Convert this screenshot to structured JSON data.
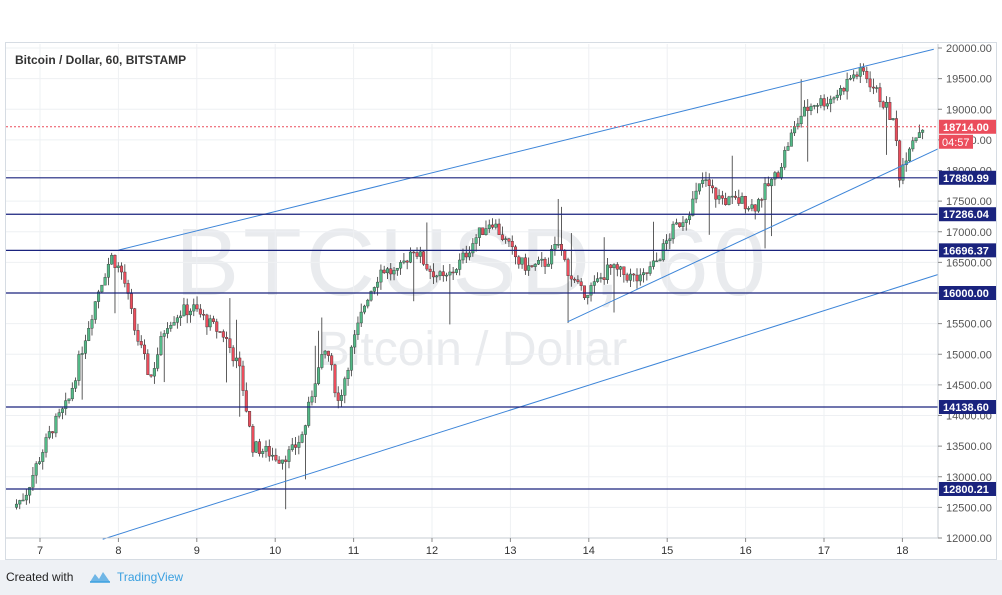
{
  "chart_title": "Bitcoin / Dollar, 60, BITSTAMP",
  "watermark": {
    "symbol": "BTCUSD, 60",
    "description": "Bitcoin / Dollar"
  },
  "footer": {
    "created_with": "Created with",
    "brand": "TradingView"
  },
  "colors": {
    "up": "#53b987",
    "down": "#eb4d5c",
    "level_line": "#1a237e",
    "trend_line": "#3d85d8",
    "last_price": "#eb4d5c",
    "background": "#ffffff"
  },
  "chart_data": {
    "type": "candlestick",
    "title": "Bitcoin / Dollar, 60, BITSTAMP",
    "x_tick_labels": [
      "7",
      "8",
      "9",
      "10",
      "11",
      "12",
      "13",
      "14",
      "15",
      "16",
      "17",
      "18"
    ],
    "y_tick_labels": [
      "12000.00",
      "12500.00",
      "13000.00",
      "13500.00",
      "14000.00",
      "14500.00",
      "15000.00",
      "15500.00",
      "16000.00",
      "16500.00",
      "17000.00",
      "17500.00",
      "18000.00",
      "18500.00",
      "19000.00",
      "19500.00",
      "20000.00"
    ],
    "ylim": [
      12000,
      20000
    ],
    "grid": true,
    "horizontal_levels": [
      {
        "price": 17880.99,
        "label": "17880.99"
      },
      {
        "price": 17286.04,
        "label": "17286.04"
      },
      {
        "price": 16696.37,
        "label": "16696.37"
      },
      {
        "price": 16000.0,
        "label": "16000.00"
      },
      {
        "price": 14138.6,
        "label": "14138.60"
      },
      {
        "price": 12800.21,
        "label": "12800.21"
      }
    ],
    "last_price": {
      "price": 18714.0,
      "label": "18714.00",
      "countdown": "04:57"
    },
    "trend_lines": [
      {
        "from": {
          "day": 8.0,
          "price": 16700
        },
        "to": {
          "day": 18.4,
          "price": 19980
        }
      },
      {
        "from": {
          "day": 7.8,
          "price": 11980
        },
        "to": {
          "day": 18.45,
          "price": 16300
        }
      },
      {
        "from": {
          "day": 13.73,
          "price": 15530
        },
        "to": {
          "day": 18.5,
          "price": 18380
        }
      }
    ],
    "price_path": [
      [
        6.7,
        12500
      ],
      [
        6.85,
        12700
      ],
      [
        7.0,
        13200
      ],
      [
        7.2,
        13800
      ],
      [
        7.4,
        14200
      ],
      [
        7.6,
        15200
      ],
      [
        7.8,
        16100
      ],
      [
        7.95,
        16600
      ],
      [
        8.1,
        16300
      ],
      [
        8.25,
        15400
      ],
      [
        8.45,
        14600
      ],
      [
        8.65,
        15500
      ],
      [
        8.85,
        15700
      ],
      [
        9.0,
        15750
      ],
      [
        9.2,
        15500
      ],
      [
        9.4,
        15300
      ],
      [
        9.6,
        14700
      ],
      [
        9.75,
        13500
      ],
      [
        9.95,
        13400
      ],
      [
        10.1,
        13300
      ],
      [
        10.25,
        13400
      ],
      [
        10.4,
        13700
      ],
      [
        10.55,
        14600
      ],
      [
        10.7,
        15100
      ],
      [
        10.85,
        14200
      ],
      [
        11.0,
        15000
      ],
      [
        11.2,
        15900
      ],
      [
        11.4,
        16400
      ],
      [
        11.6,
        16300
      ],
      [
        11.8,
        16750
      ],
      [
        12.0,
        16400
      ],
      [
        12.2,
        16200
      ],
      [
        12.4,
        16500
      ],
      [
        12.6,
        16900
      ],
      [
        12.8,
        17200
      ],
      [
        13.0,
        16800
      ],
      [
        13.15,
        16500
      ],
      [
        13.3,
        16400
      ],
      [
        13.5,
        16500
      ],
      [
        13.65,
        16800
      ],
      [
        13.8,
        16300
      ],
      [
        13.95,
        16000
      ],
      [
        14.1,
        16100
      ],
      [
        14.3,
        16400
      ],
      [
        14.5,
        16300
      ],
      [
        14.7,
        16200
      ],
      [
        14.9,
        16500
      ],
      [
        15.1,
        17000
      ],
      [
        15.3,
        17300
      ],
      [
        15.5,
        17850
      ],
      [
        15.65,
        17600
      ],
      [
        15.8,
        17500
      ],
      [
        16.0,
        17500
      ],
      [
        16.15,
        17400
      ],
      [
        16.3,
        17700
      ],
      [
        16.45,
        17950
      ],
      [
        16.6,
        18500
      ],
      [
        16.75,
        18900
      ],
      [
        16.9,
        19100
      ],
      [
        17.1,
        19150
      ],
      [
        17.25,
        19300
      ],
      [
        17.4,
        19550
      ],
      [
        17.55,
        19600
      ],
      [
        17.7,
        19300
      ],
      [
        17.85,
        19000
      ],
      [
        17.95,
        18700
      ],
      [
        18.0,
        17900
      ],
      [
        18.15,
        18500
      ],
      [
        18.3,
        18714
      ]
    ],
    "candle_count": 277
  }
}
